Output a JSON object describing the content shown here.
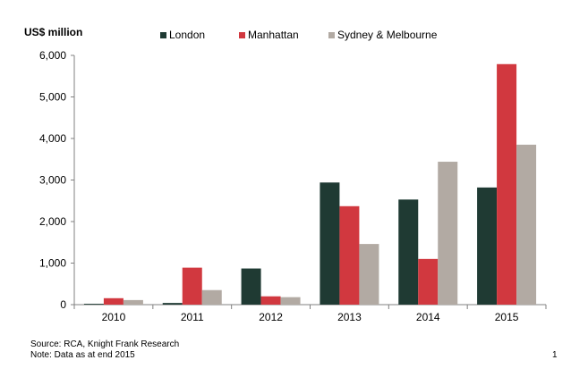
{
  "chart_data": {
    "type": "bar",
    "title": "",
    "xlabel": "",
    "ylabel": "US$ million",
    "categories": [
      "2010",
      "2011",
      "2012",
      "2013",
      "2014",
      "2015"
    ],
    "series": [
      {
        "name": "London",
        "values": [
          20,
          40,
          870,
          2940,
          2530,
          2820
        ],
        "color": "#1f3a33"
      },
      {
        "name": "Manhattan",
        "values": [
          155,
          890,
          200,
          2370,
          1100,
          5790
        ],
        "color": "#d1383f"
      },
      {
        "name": "Sydney & Melbourne",
        "values": [
          110,
          350,
          180,
          1460,
          3440,
          3850
        ],
        "color": "#b2aaa3"
      }
    ],
    "ylim": [
      0,
      6000
    ],
    "yticks": [
      0,
      1000,
      2000,
      3000,
      4000,
      5000,
      6000
    ],
    "ytick_labels": [
      "0",
      "1,000",
      "2,000",
      "3,000",
      "4,000",
      "5,000",
      "6,000"
    ],
    "grid": false,
    "legend_position": "top"
  },
  "footer": {
    "source": "Source: RCA, Knight Frank Research",
    "note": "Note: Data as at end 2015",
    "page_number": "1"
  }
}
